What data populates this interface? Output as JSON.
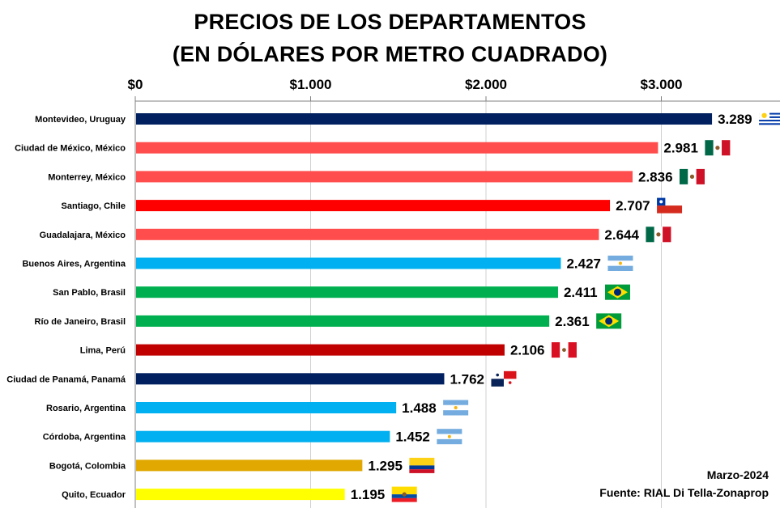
{
  "chart_data": {
    "type": "bar",
    "orientation": "horizontal",
    "title": "PRECIOS DE LOS DEPARTAMENTOS",
    "subtitle": "(EN DÓLARES POR METRO CUADRADO)",
    "xlim": [
      0,
      3500
    ],
    "x_ticks": [
      0,
      1000,
      2000,
      3000
    ],
    "x_tick_labels": [
      "$0",
      "$1.000",
      "$2.000",
      "$3.000"
    ],
    "grid": true,
    "categories": [
      "Montevideo, Uruguay",
      "Ciudad de México, México",
      "Monterrey, México",
      "Santiago, Chile",
      "Guadalajara, México",
      "Buenos Aires, Argentina",
      "San Pablo, Brasil",
      "Río de Janeiro, Brasil",
      "Lima, Perú",
      "Ciudad de Panamá, Panamá",
      "Rosario, Argentina",
      "Córdoba, Argentina",
      "Bogotá, Colombia",
      "Quito, Ecuador"
    ],
    "values": [
      3289,
      2981,
      2836,
      2707,
      2644,
      2427,
      2411,
      2361,
      2106,
      1762,
      1488,
      1452,
      1295,
      1195
    ],
    "value_labels": [
      "3.289",
      "2.981",
      "2.836",
      "2.707",
      "2.644",
      "2.427",
      "2.411",
      "2.361",
      "2.106",
      "1.762",
      "1.488",
      "1.452",
      "1.295",
      "1.195"
    ],
    "bar_colors": [
      "#002060",
      "#ff4d4d",
      "#ff4d4d",
      "#ff0000",
      "#ff4d4d",
      "#00b0f0",
      "#00b050",
      "#00b050",
      "#c00000",
      "#002060",
      "#00b0f0",
      "#00b0f0",
      "#e0a800",
      "#ffff00"
    ],
    "flags": [
      "uruguay-flag",
      "mexico-flag",
      "mexico-flag",
      "chile-flag",
      "mexico-flag",
      "argentina-flag",
      "brazil-flag",
      "brazil-flag",
      "peru-flag",
      "panama-flag",
      "argentina-flag",
      "argentina-flag",
      "colombia-flag",
      "ecuador-flag"
    ]
  },
  "notes": {
    "date": "Marzo-2024",
    "source": "Fuente: RIAL Di Tella-Zonaprop"
  }
}
